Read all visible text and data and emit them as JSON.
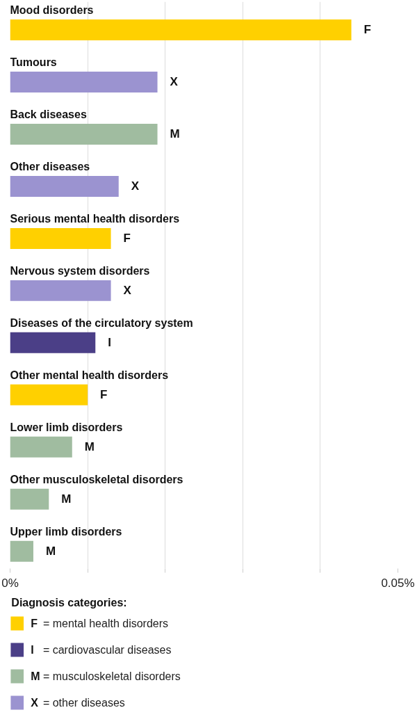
{
  "chart_data": {
    "type": "bar",
    "orientation": "horizontal",
    "categories": [
      "Mood disorders",
      "Tumours",
      "Back diseases",
      "Other diseases",
      "Serious mental health disorders",
      "Nervous system disorders",
      "Diseases of the circulatory system",
      "Other mental health disorders",
      "Lower limb disorders",
      "Other musculoskeletal disorders",
      "Upper limb disorders"
    ],
    "series": [
      {
        "name": "F = mental health disorders",
        "color": "#ffd000",
        "values": [
          0.044,
          null,
          null,
          null,
          0.013,
          null,
          null,
          0.01,
          null,
          null,
          null
        ],
        "value_labels": [
          "F",
          null,
          null,
          null,
          "F",
          null,
          null,
          "F",
          null,
          null,
          null
        ]
      },
      {
        "name": "I = cardiovascular diseases",
        "color": "#4b3f87",
        "values": [
          null,
          null,
          null,
          null,
          null,
          null,
          0.011,
          null,
          null,
          null,
          null
        ],
        "value_labels": [
          null,
          null,
          null,
          null,
          null,
          null,
          "I",
          null,
          null,
          null,
          null
        ]
      },
      {
        "name": "M = musculoskeletal disorders",
        "color": "#a0bca0",
        "values": [
          null,
          null,
          0.019,
          null,
          null,
          null,
          null,
          null,
          0.008,
          0.005,
          0.003
        ],
        "value_labels": [
          null,
          null,
          "M",
          null,
          null,
          null,
          null,
          null,
          "M",
          "M",
          "M"
        ]
      },
      {
        "name": "X = other diseases",
        "color": "#9b93d0",
        "values": [
          null,
          0.019,
          null,
          0.014,
          null,
          0.013,
          null,
          null,
          null,
          null,
          null
        ],
        "value_labels": [
          null,
          "X",
          null,
          "X",
          null,
          "X",
          null,
          null,
          null,
          null,
          null
        ]
      }
    ],
    "xlim": [
      0,
      0.05
    ],
    "xticks": [
      {
        "value": 0,
        "label": "0%"
      },
      {
        "value": 0.01,
        "label": null
      },
      {
        "value": 0.02,
        "label": null
      },
      {
        "value": 0.03,
        "label": null
      },
      {
        "value": 0.04,
        "label": null
      },
      {
        "value": 0.05,
        "label": "0.05%"
      }
    ],
    "grid": "x",
    "legend": "bottom",
    "legend_title": "Diagnosis categories:"
  }
}
